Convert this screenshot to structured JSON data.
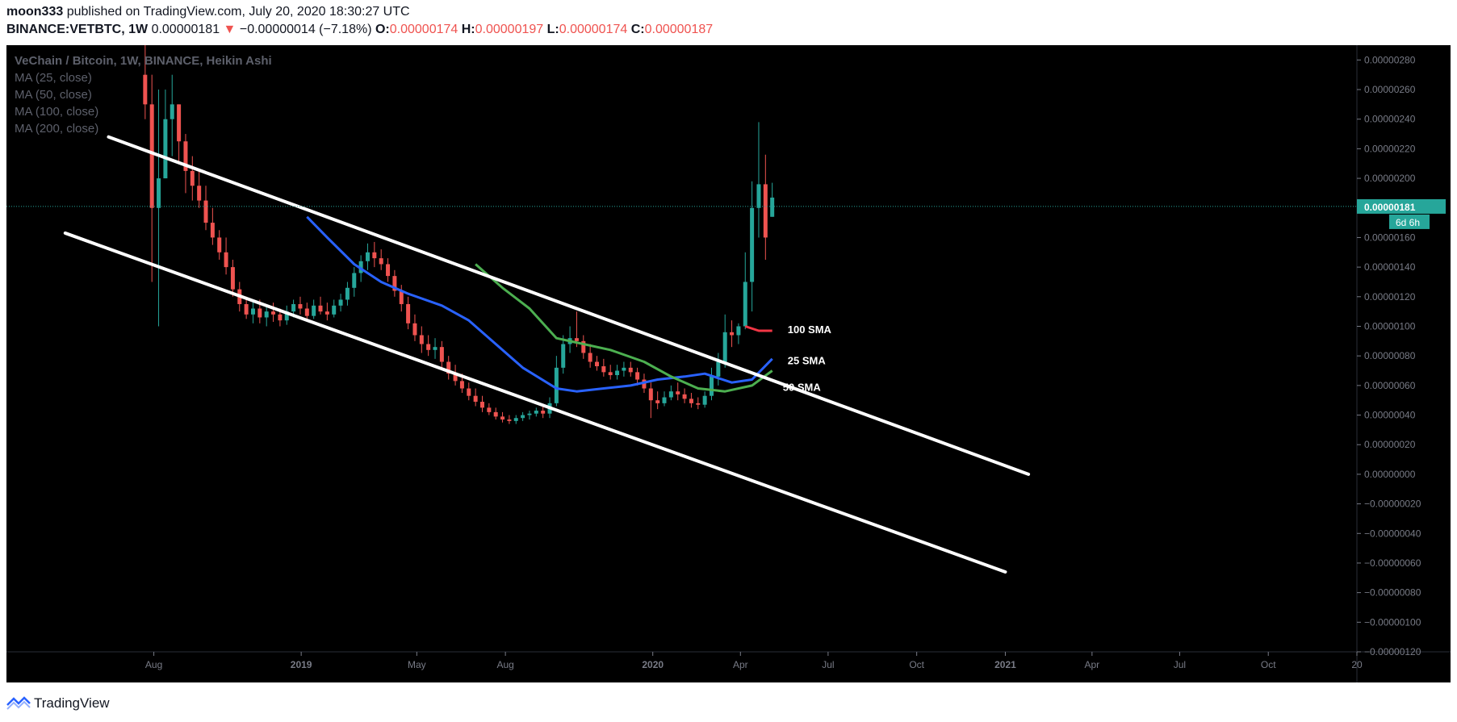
{
  "header": {
    "author": "moon333",
    "published": "published on TradingView.com, July 20, 2020 18:30:27 UTC",
    "symbol": "BINANCE:VETBTC, 1W",
    "last": "0.00000181",
    "change_arrow": "▼",
    "change": "−0.00000014 (−7.18%)",
    "o_label": "O:",
    "o": "0.00000174",
    "h_label": "H:",
    "h": "0.00000197",
    "l_label": "L:",
    "l": "0.00000174",
    "c_label": "C:",
    "c": "0.00000187"
  },
  "legend": [
    "VeChain / Bitcoin, 1W, BINANCE, Heikin Ashi",
    "MA (25, close)",
    "MA (50, close)",
    "MA (100, close)",
    "MA (200, close)"
  ],
  "footer": {
    "brand": "TradingView"
  },
  "colors": {
    "up": "#26a69a",
    "down": "#ef5350",
    "ma25": "#2962ff",
    "ma50": "#4caf50",
    "ma100": "#f23645",
    "channel": "#ffffff",
    "background": "#000000",
    "price_tag": "#26a69a"
  },
  "chart_data": {
    "type": "candlestick",
    "title": "VeChain / Bitcoin, 1W, BINANCE, Heikin Ashi",
    "x_ticks": [
      "Aug",
      "2019",
      "May",
      "Aug",
      "2020",
      "Apr",
      "Jul",
      "Oct",
      "2021",
      "Apr",
      "Jul",
      "Oct",
      "20"
    ],
    "x_tick_dates": [
      "2018-08-01",
      "2019-01-01",
      "2019-05-01",
      "2019-08-01",
      "2020-01-01",
      "2020-04-01",
      "2020-07-01",
      "2020-10-01",
      "2021-01-01",
      "2021-04-01",
      "2021-07-01",
      "2021-10-01",
      "2022-01-01"
    ],
    "x_range": [
      "2018-03-01",
      "2022-01-01"
    ],
    "ylim": [
      -1.2e-06,
      2.9e-06
    ],
    "y_ticks": [
      "0.00000280",
      "0.00000260",
      "0.00000240",
      "0.00000220",
      "0.00000200",
      "0.00000180",
      "0.00000160",
      "0.00000140",
      "0.00000120",
      "0.00000100",
      "0.00000080",
      "0.00000060",
      "0.00000040",
      "0.00000020",
      "0.00000000",
      "−0.00000020",
      "−0.00000040",
      "−0.00000060",
      "−0.00000080",
      "−0.00000100",
      "−0.00000120"
    ],
    "y_tick_values": [
      2.8e-06,
      2.6e-06,
      2.4e-06,
      2.2e-06,
      2e-06,
      1.8e-06,
      1.6e-06,
      1.4e-06,
      1.2e-06,
      1e-06,
      8e-07,
      6e-07,
      4e-07,
      2e-07,
      0,
      -2e-07,
      -4e-07,
      -6e-07,
      -8e-07,
      -1e-06,
      -1.2e-06
    ],
    "candles_ohlc": [
      [
        "2018-07-23",
        2.7e-06,
        2.9e-06,
        2.4e-06,
        2.5e-06
      ],
      [
        "2018-07-30",
        2.5e-06,
        2.7e-06,
        1.3e-06,
        1.8e-06
      ],
      [
        "2018-08-06",
        1.8e-06,
        2.6e-06,
        1e-06,
        2e-06
      ],
      [
        "2018-08-13",
        2e-06,
        2.6e-06,
        2e-06,
        2.4e-06
      ],
      [
        "2018-08-20",
        2.4e-06,
        2.7e-06,
        2.15e-06,
        2.5e-06
      ],
      [
        "2018-08-27",
        2.5e-06,
        2.5e-06,
        2.1e-06,
        2.25e-06
      ],
      [
        "2018-09-03",
        2.25e-06,
        2.3e-06,
        1.9e-06,
        2.05e-06
      ],
      [
        "2018-09-10",
        2.05e-06,
        2.15e-06,
        1.85e-06,
        1.95e-06
      ],
      [
        "2018-09-17",
        1.95e-06,
        2.05e-06,
        1.8e-06,
        1.85e-06
      ],
      [
        "2018-09-24",
        1.85e-06,
        1.95e-06,
        1.65e-06,
        1.7e-06
      ],
      [
        "2018-10-01",
        1.7e-06,
        1.8e-06,
        1.55e-06,
        1.6e-06
      ],
      [
        "2018-10-08",
        1.6e-06,
        1.65e-06,
        1.45e-06,
        1.5e-06
      ],
      [
        "2018-10-15",
        1.5e-06,
        1.6e-06,
        1.35e-06,
        1.4e-06
      ],
      [
        "2018-10-22",
        1.4e-06,
        1.45e-06,
        1.2e-06,
        1.25e-06
      ],
      [
        "2018-10-29",
        1.25e-06,
        1.3e-06,
        1.1e-06,
        1.15e-06
      ],
      [
        "2018-11-05",
        1.15e-06,
        1.2e-06,
        1.05e-06,
        1.08e-06
      ],
      [
        "2018-11-12",
        1.08e-06,
        1.18e-06,
        1.02e-06,
        1.12e-06
      ],
      [
        "2018-11-19",
        1.12e-06,
        1.18e-06,
        1.02e-06,
        1.06e-06
      ],
      [
        "2018-11-26",
        1.06e-06,
        1.14e-06,
        1e-06,
        1.1e-06
      ],
      [
        "2018-12-03",
        1.1e-06,
        1.16e-06,
        1.03e-06,
        1.08e-06
      ],
      [
        "2018-12-10",
        1.08e-06,
        1.12e-06,
        1e-06,
        1.04e-06
      ],
      [
        "2018-12-17",
        1.04e-06,
        1.14e-06,
        1.01e-06,
        1.1e-06
      ],
      [
        "2018-12-24",
        1.1e-06,
        1.18e-06,
        1.06e-06,
        1.15e-06
      ],
      [
        "2018-12-31",
        1.15e-06,
        1.2e-06,
        1.08e-06,
        1.12e-06
      ],
      [
        "2019-01-07",
        1.12e-06,
        1.16e-06,
        1.04e-06,
        1.07e-06
      ],
      [
        "2019-01-14",
        1.07e-06,
        1.18e-06,
        1.05e-06,
        1.14e-06
      ],
      [
        "2019-01-21",
        1.14e-06,
        1.2e-06,
        1.08e-06,
        1.1e-06
      ],
      [
        "2019-01-28",
        1.1e-06,
        1.16e-06,
        1.04e-06,
        1.08e-06
      ],
      [
        "2019-02-04",
        1.08e-06,
        1.18e-06,
        1.06e-06,
        1.14e-06
      ],
      [
        "2019-02-11",
        1.14e-06,
        1.22e-06,
        1.1e-06,
        1.18e-06
      ],
      [
        "2019-02-18",
        1.18e-06,
        1.3e-06,
        1.14e-06,
        1.26e-06
      ],
      [
        "2019-02-25",
        1.26e-06,
        1.4e-06,
        1.2e-06,
        1.36e-06
      ],
      [
        "2019-03-04",
        1.36e-06,
        1.48e-06,
        1.3e-06,
        1.44e-06
      ],
      [
        "2019-03-11",
        1.44e-06,
        1.56e-06,
        1.38e-06,
        1.5e-06
      ],
      [
        "2019-03-18",
        1.5e-06,
        1.57e-06,
        1.4e-06,
        1.46e-06
      ],
      [
        "2019-03-25",
        1.46e-06,
        1.52e-06,
        1.38e-06,
        1.42e-06
      ],
      [
        "2019-04-01",
        1.42e-06,
        1.46e-06,
        1.3e-06,
        1.34e-06
      ],
      [
        "2019-04-08",
        1.34e-06,
        1.38e-06,
        1.2e-06,
        1.24e-06
      ],
      [
        "2019-04-15",
        1.24e-06,
        1.28e-06,
        1.1e-06,
        1.15e-06
      ],
      [
        "2019-04-22",
        1.15e-06,
        1.2e-06,
        9.8e-07,
        1.02e-06
      ],
      [
        "2019-04-29",
        1.02e-06,
        1.08e-06,
        9e-07,
        9.4e-07
      ],
      [
        "2019-05-06",
        9.4e-07,
        1e-06,
        8.2e-07,
        8.8e-07
      ],
      [
        "2019-05-13",
        8.8e-07,
        9.4e-07,
        8e-07,
        8.4e-07
      ],
      [
        "2019-05-20",
        8.4e-07,
        9.2e-07,
        7.8e-07,
        8.6e-07
      ],
      [
        "2019-05-27",
        8.6e-07,
        9e-07,
        7.2e-07,
        7.6e-07
      ],
      [
        "2019-06-03",
        7.6e-07,
        8e-07,
        6.4e-07,
        6.8e-07
      ],
      [
        "2019-06-10",
        6.8e-07,
        7.4e-07,
        6e-07,
        6.3e-07
      ],
      [
        "2019-06-17",
        6.3e-07,
        6.8e-07,
        5.5e-07,
        5.8e-07
      ],
      [
        "2019-06-24",
        5.8e-07,
        6.2e-07,
        5e-07,
        5.3e-07
      ],
      [
        "2019-07-01",
        5.3e-07,
        5.8e-07,
        4.6e-07,
        4.9e-07
      ],
      [
        "2019-07-08",
        4.9e-07,
        5.3e-07,
        4.2e-07,
        4.5e-07
      ],
      [
        "2019-07-15",
        4.5e-07,
        4.8e-07,
        4e-07,
        4.2e-07
      ],
      [
        "2019-07-22",
        4.2e-07,
        4.5e-07,
        3.7e-07,
        3.9e-07
      ],
      [
        "2019-07-29",
        3.9e-07,
        4.2e-07,
        3.5e-07,
        3.7e-07
      ],
      [
        "2019-08-05",
        3.7e-07,
        4e-07,
        3.4e-07,
        3.6e-07
      ],
      [
        "2019-08-12",
        3.6e-07,
        4e-07,
        3.4e-07,
        3.8e-07
      ],
      [
        "2019-08-19",
        3.8e-07,
        4.2e-07,
        3.6e-07,
        4e-07
      ],
      [
        "2019-08-26",
        4e-07,
        4.3e-07,
        3.7e-07,
        4.1e-07
      ],
      [
        "2019-09-02",
        4.1e-07,
        4.5e-07,
        3.9e-07,
        4.3e-07
      ],
      [
        "2019-09-09",
        4.3e-07,
        4.6e-07,
        3.8e-07,
        4.1e-07
      ],
      [
        "2019-09-16",
        4.1e-07,
        5.2e-07,
        3.8e-07,
        4.8e-07
      ],
      [
        "2019-09-23",
        4.8e-07,
        8e-07,
        4.6e-07,
        7.2e-07
      ],
      [
        "2019-09-30",
        7.2e-07,
        9.4e-07,
        6.8e-07,
        8.8e-07
      ],
      [
        "2019-10-07",
        8.8e-07,
        1e-06,
        8.2e-07,
        9.2e-07
      ],
      [
        "2019-10-14",
        9.2e-07,
        1.1e-06,
        8.6e-07,
        9e-07
      ],
      [
        "2019-10-21",
        9e-07,
        9.4e-07,
        7.8e-07,
        8.2e-07
      ],
      [
        "2019-10-28",
        8.2e-07,
        8.8e-07,
        7.2e-07,
        7.6e-07
      ],
      [
        "2019-11-04",
        7.6e-07,
        8e-07,
        7e-07,
        7.3e-07
      ],
      [
        "2019-11-11",
        7.3e-07,
        7.8e-07,
        6.6e-07,
        6.9e-07
      ],
      [
        "2019-11-18",
        6.9e-07,
        7.4e-07,
        6.4e-07,
        6.7e-07
      ],
      [
        "2019-11-25",
        6.7e-07,
        7.4e-07,
        6.4e-07,
        7e-07
      ],
      [
        "2019-12-02",
        7e-07,
        7.6e-07,
        6.6e-07,
        7.2e-07
      ],
      [
        "2019-12-09",
        7.2e-07,
        7.6e-07,
        6.6e-07,
        6.9e-07
      ],
      [
        "2019-12-16",
        6.9e-07,
        7.2e-07,
        6e-07,
        6.4e-07
      ],
      [
        "2019-12-23",
        6.4e-07,
        6.8e-07,
        5.5e-07,
        5.8e-07
      ],
      [
        "2019-12-30",
        5.8e-07,
        6.2e-07,
        3.8e-07,
        5e-07
      ],
      [
        "2020-01-06",
        5e-07,
        5.6e-07,
        4.4e-07,
        4.8e-07
      ],
      [
        "2020-01-13",
        4.8e-07,
        5.6e-07,
        4.6e-07,
        5.2e-07
      ],
      [
        "2020-01-20",
        5.2e-07,
        6e-07,
        5e-07,
        5.6e-07
      ],
      [
        "2020-01-27",
        5.6e-07,
        6.2e-07,
        5e-07,
        5.4e-07
      ],
      [
        "2020-02-03",
        5.4e-07,
        5.8e-07,
        4.8e-07,
        5.1e-07
      ],
      [
        "2020-02-10",
        5.1e-07,
        5.5e-07,
        4.5e-07,
        4.8e-07
      ],
      [
        "2020-02-17",
        4.8e-07,
        5.2e-07,
        4.4e-07,
        4.7e-07
      ],
      [
        "2020-02-24",
        4.7e-07,
        5.6e-07,
        4.5e-07,
        5.3e-07
      ],
      [
        "2020-03-02",
        5.3e-07,
        7.2e-07,
        5e-07,
        6.6e-07
      ],
      [
        "2020-03-09",
        6.6e-07,
        8.2e-07,
        6e-07,
        7.6e-07
      ],
      [
        "2020-03-16",
        7.6e-07,
        1.08e-06,
        7.2e-07,
        9.6e-07
      ],
      [
        "2020-03-23",
        9.6e-07,
        1.04e-06,
        8.6e-07,
        9.4e-07
      ],
      [
        "2020-03-30",
        9.4e-07,
        1.02e-06,
        8.8e-07,
        1e-06
      ],
      [
        "2020-04-06",
        1e-06,
        1.5e-06,
        9.8e-07,
        1.3e-06
      ],
      [
        "2020-04-13",
        1.3e-06,
        1.98e-06,
        1.1e-06,
        1.8e-06
      ],
      [
        "2020-04-20",
        1.8e-06,
        2.38e-06,
        1.6e-06,
        1.96e-06
      ],
      [
        "2020-04-27",
        1.96e-06,
        2.16e-06,
        1.45e-06,
        1.6e-06
      ],
      [
        "2020-05-04",
        1.74e-06,
        1.97e-06,
        1.74e-06,
        1.87e-06
      ]
    ],
    "series": [
      {
        "name": "25 SMA",
        "values": [
          [
            "2019-01-07",
            1.74e-06
          ],
          [
            "2019-01-28",
            1.6e-06
          ],
          [
            "2019-02-25",
            1.42e-06
          ],
          [
            "2019-03-25",
            1.3e-06
          ],
          [
            "2019-04-22",
            1.22e-06
          ],
          [
            "2019-05-27",
            1.14e-06
          ],
          [
            "2019-06-24",
            1.04e-06
          ],
          [
            "2019-07-22",
            8.8e-07
          ],
          [
            "2019-08-19",
            7.2e-07
          ],
          [
            "2019-09-23",
            5.8e-07
          ],
          [
            "2019-10-14",
            5.6e-07
          ],
          [
            "2019-11-11",
            5.8e-07
          ],
          [
            "2019-12-09",
            6e-07
          ],
          [
            "2020-01-06",
            6.4e-07
          ],
          [
            "2020-02-03",
            6.6e-07
          ],
          [
            "2020-02-24",
            6.8e-07
          ],
          [
            "2020-03-23",
            6.2e-07
          ],
          [
            "2020-04-13",
            6.4e-07
          ],
          [
            "2020-05-04",
            7.8e-07
          ]
        ]
      },
      {
        "name": "50 SMA",
        "values": [
          [
            "2019-07-01",
            1.42e-06
          ],
          [
            "2019-07-29",
            1.26e-06
          ],
          [
            "2019-08-26",
            1.12e-06
          ],
          [
            "2019-09-23",
            9.2e-07
          ],
          [
            "2019-10-21",
            8.8e-07
          ],
          [
            "2019-11-18",
            8.4e-07
          ],
          [
            "2019-12-23",
            7.6e-07
          ],
          [
            "2020-01-20",
            6.6e-07
          ],
          [
            "2020-02-17",
            5.8e-07
          ],
          [
            "2020-03-16",
            5.6e-07
          ],
          [
            "2020-04-13",
            6e-07
          ],
          [
            "2020-05-04",
            7e-07
          ]
        ]
      },
      {
        "name": "100 SMA",
        "values": [
          [
            "2020-04-06",
            1e-06
          ],
          [
            "2020-04-20",
            9.7e-07
          ],
          [
            "2020-05-04",
            9.7e-07
          ]
        ]
      }
    ],
    "drawings": {
      "upper_channel": [
        [
          "2018-06-15",
          2.28e-06
        ],
        [
          "2021-01-25",
          0.0
        ]
      ],
      "lower_channel": [
        [
          "2018-05-01",
          1.63e-06
        ],
        [
          "2021-01-01",
          -6.6e-07
        ]
      ]
    },
    "annotations": [
      {
        "text": "100 SMA",
        "date": "2020-05-20",
        "value": 9.8e-07
      },
      {
        "text": "25 SMA",
        "date": "2020-05-20",
        "value": 7.7e-07
      },
      {
        "text": "50 SMA",
        "date": "2020-05-15",
        "value": 5.9e-07
      }
    ],
    "price_tag": "0.00000181",
    "countdown_tag": "6d 6h",
    "last_price": 1.81e-06
  }
}
